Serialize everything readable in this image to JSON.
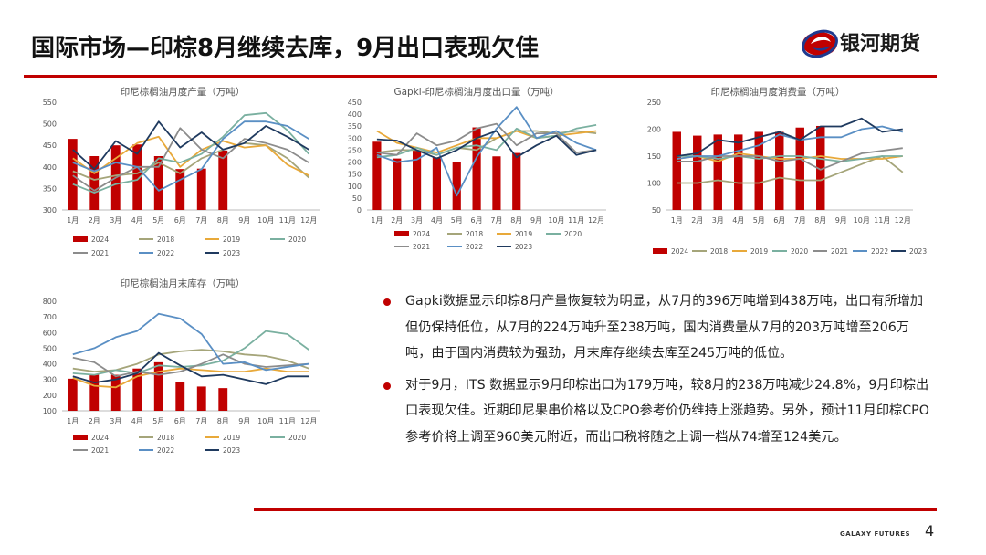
{
  "header": {
    "title": "国际市场—印棕8月继续去库，9月出口表现欠佳",
    "logo_text": "银河期货",
    "accent_color": "#c00000"
  },
  "footer": {
    "brand": "GALAXY FUTURES",
    "page": "4"
  },
  "bullets": [
    "Gapki数据显示印棕8月产量恢复较为明显，从7月的396万吨增到438万吨，出口有所增加但仍保持低位，从7月的224万吨升至238万吨，国内消费量从7月的203万吨增至206万吨，由于国内消费较为强劲，月末库存继续去库至245万吨的低位。",
    "对于9月，ITS 数据显示9月印棕出口为179万吨，较8月的238万吨减少24.8%，9月印棕出口表现欠佳。近期印尼果串价格以及CPO参考价仍维持上涨趋势。另外，预计11月印棕CPO参考价将上调至960美元附近，而出口税将随之上调一档从74增至124美元。"
  ],
  "series_colors": {
    "2024": "#c00000",
    "2018": "#a5a57a",
    "2019": "#e8a93a",
    "2020": "#7ab0a0",
    "2021": "#8c8c8c",
    "2022": "#5a8fc4",
    "2023": "#1f3a5f"
  },
  "chart_data": [
    {
      "type": "bar+line",
      "title": "印尼棕榈油月度产量（万吨）",
      "categories": [
        "1月",
        "2月",
        "3月",
        "4月",
        "5月",
        "6月",
        "7月",
        "8月",
        "9月",
        "10月",
        "11月",
        "12月"
      ],
      "ylim": [
        300,
        550
      ],
      "yticks": [
        300,
        350,
        400,
        450,
        500,
        550
      ],
      "bar_series": {
        "name": "2024",
        "values": [
          465,
          425,
          450,
          452,
          425,
          395,
          396,
          438
        ]
      },
      "series": [
        {
          "name": "2018",
          "values": [
            390,
            370,
            380,
            385,
            410,
            385,
            420,
            440,
            455,
            450,
            420,
            375
          ]
        },
        {
          "name": "2019",
          "values": [
            420,
            385,
            420,
            455,
            470,
            400,
            440,
            460,
            445,
            450,
            405,
            380
          ]
        },
        {
          "name": "2020",
          "values": [
            360,
            340,
            360,
            370,
            420,
            410,
            430,
            470,
            520,
            525,
            485,
            430
          ]
        },
        {
          "name": "2021",
          "values": [
            380,
            345,
            375,
            400,
            400,
            490,
            440,
            420,
            465,
            455,
            440,
            410
          ]
        },
        {
          "name": "2022",
          "values": [
            410,
            390,
            410,
            400,
            345,
            370,
            395,
            465,
            505,
            505,
            495,
            465
          ]
        },
        {
          "name": "2023",
          "values": [
            440,
            395,
            460,
            430,
            505,
            445,
            480,
            440,
            455,
            495,
            470,
            440
          ]
        }
      ]
    },
    {
      "type": "bar+line",
      "title": "Gapki-印尼棕榈油月度出口量（万吨）",
      "categories": [
        "1月",
        "2月",
        "3月",
        "4月",
        "5月",
        "6月",
        "7月",
        "8月",
        "9月",
        "10月",
        "11月",
        "12月"
      ],
      "ylim": [
        0,
        450
      ],
      "yticks": [
        0,
        50,
        100,
        150,
        200,
        250,
        300,
        350,
        400,
        450
      ],
      "bar_series": {
        "name": "2024",
        "values": [
          285,
          215,
          250,
          220,
          200,
          345,
          224,
          238
        ]
      },
      "series": [
        {
          "name": "2018",
          "values": [
            240,
            250,
            250,
            230,
            260,
            250,
            300,
            330,
            330,
            320,
            330,
            320
          ]
        },
        {
          "name": "2019",
          "values": [
            330,
            280,
            260,
            240,
            270,
            300,
            300,
            330,
            300,
            310,
            320,
            330
          ]
        },
        {
          "name": "2020",
          "values": [
            220,
            230,
            260,
            230,
            260,
            270,
            250,
            340,
            300,
            310,
            340,
            355
          ]
        },
        {
          "name": "2021",
          "values": [
            240,
            230,
            320,
            270,
            290,
            340,
            360,
            270,
            320,
            320,
            240,
            250
          ]
        },
        {
          "name": "2022",
          "values": [
            230,
            200,
            210,
            260,
            60,
            220,
            340,
            430,
            300,
            330,
            280,
            250
          ]
        },
        {
          "name": "2023",
          "values": [
            295,
            290,
            250,
            215,
            250,
            300,
            330,
            220,
            270,
            310,
            230,
            250
          ]
        }
      ]
    },
    {
      "type": "bar+line",
      "title": "印尼棕榈油月度消费量（万吨）",
      "categories": [
        "1月",
        "2月",
        "3月",
        "4月",
        "5月",
        "6月",
        "7月",
        "8月",
        "9月",
        "10月",
        "11月",
        "12月"
      ],
      "ylim": [
        50,
        250
      ],
      "yticks": [
        50,
        100,
        150,
        200,
        250
      ],
      "bar_series": {
        "name": "2024",
        "values": [
          195,
          188,
          190,
          190,
          195,
          195,
          203,
          206
        ]
      },
      "series": [
        {
          "name": "2018",
          "values": [
            100,
            100,
            105,
            100,
            100,
            110,
            105,
            105,
            120,
            135,
            150,
            120
          ]
        },
        {
          "name": "2019",
          "values": [
            145,
            150,
            140,
            155,
            150,
            145,
            145,
            150,
            145,
            145,
            145,
            150
          ]
        },
        {
          "name": "2020",
          "values": [
            150,
            150,
            145,
            150,
            145,
            150,
            150,
            145,
            140,
            145,
            150,
            150
          ]
        },
        {
          "name": "2021",
          "values": [
            140,
            140,
            150,
            150,
            150,
            140,
            145,
            125,
            140,
            155,
            160,
            165
          ]
        },
        {
          "name": "2022",
          "values": [
            145,
            150,
            150,
            160,
            170,
            190,
            180,
            185,
            185,
            200,
            205,
            195
          ]
        },
        {
          "name": "2023",
          "values": [
            150,
            155,
            180,
            175,
            185,
            195,
            180,
            205,
            205,
            220,
            195,
            200
          ]
        }
      ]
    },
    {
      "type": "bar+line",
      "title": "印尼棕榈油月末库存（万吨）",
      "categories": [
        "1月",
        "2月",
        "3月",
        "4月",
        "5月",
        "6月",
        "7月",
        "8月",
        "9月",
        "10月",
        "11月",
        "12月"
      ],
      "ylim": [
        100,
        800
      ],
      "yticks": [
        100,
        200,
        300,
        400,
        500,
        600,
        700,
        800
      ],
      "bar_series": {
        "name": "2024",
        "values": [
          305,
          330,
          330,
          370,
          410,
          285,
          255,
          245
        ]
      },
      "series": [
        {
          "name": "2018",
          "values": [
            370,
            350,
            360,
            400,
            460,
            480,
            490,
            480,
            460,
            450,
            420,
            370
          ]
        },
        {
          "name": "2019",
          "values": [
            310,
            260,
            250,
            320,
            350,
            370,
            360,
            350,
            350,
            370,
            350,
            350
          ]
        },
        {
          "name": "2020",
          "values": [
            340,
            330,
            360,
            340,
            390,
            380,
            390,
            420,
            500,
            610,
            590,
            490
          ]
        },
        {
          "name": "2021",
          "values": [
            440,
            410,
            320,
            350,
            330,
            350,
            400,
            460,
            400,
            380,
            390,
            400
          ]
        },
        {
          "name": "2022",
          "values": [
            460,
            500,
            570,
            610,
            720,
            690,
            590,
            400,
            410,
            360,
            380,
            400
          ]
        },
        {
          "name": "2023",
          "values": [
            320,
            280,
            300,
            340,
            470,
            390,
            320,
            330,
            300,
            270,
            320,
            320
          ]
        }
      ]
    }
  ]
}
